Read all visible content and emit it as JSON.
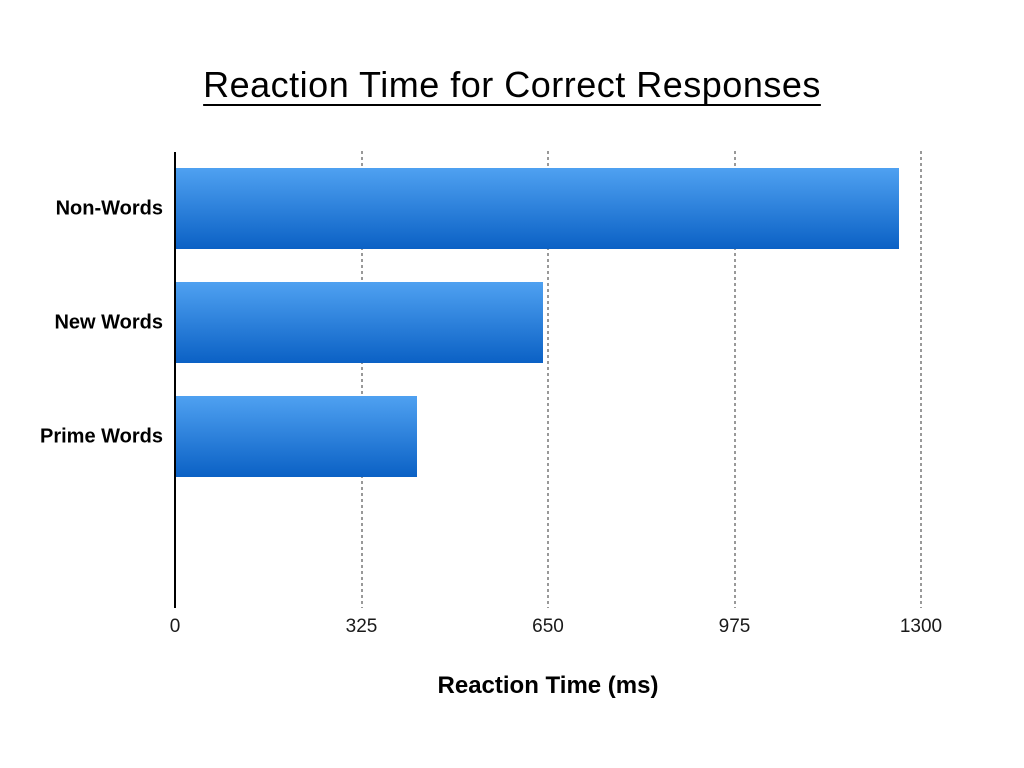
{
  "chart_data": {
    "type": "bar",
    "orientation": "horizontal",
    "title": "Reaction Time for Correct Responses",
    "categories": [
      "Non-Words",
      "New Words",
      "Prime Words"
    ],
    "values": [
      1260,
      640,
      420
    ],
    "xlabel": "Reaction Time (ms)",
    "ylabel": "",
    "xlim": [
      0,
      1300
    ],
    "x_ticks": [
      0,
      325,
      650,
      975,
      1300
    ],
    "grid": "vertical dotted gridlines at each x tick except 0",
    "legend_position": "none",
    "colors": {
      "bar_gradient_top": "#4FA1F1",
      "bar_gradient_bottom": "#0B61C5",
      "gridline": "#999999",
      "axis_line": "#000000",
      "text": "#000000",
      "background": "#ffffff"
    }
  }
}
